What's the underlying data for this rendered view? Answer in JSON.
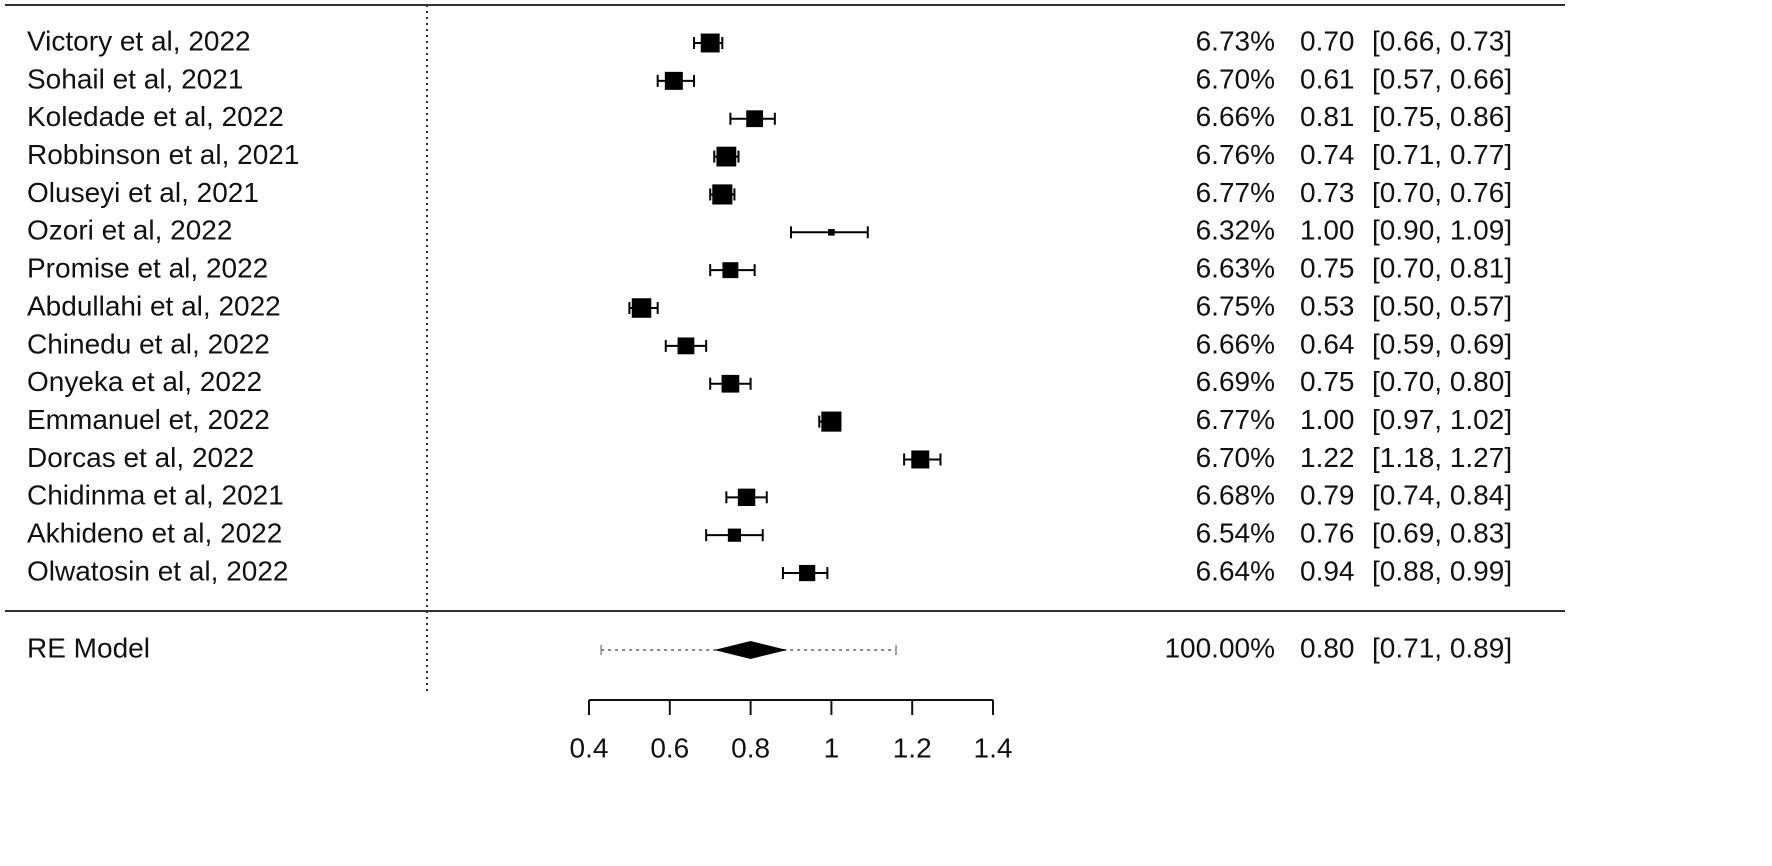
{
  "chart_data": {
    "type": "forest",
    "categories": [
      "Victory et al, 2022",
      "Sohail et al, 2021",
      "Koledade et al,  2022",
      "Robbinson et al,  2021",
      "Oluseyi et al,  2021",
      "Ozori et al, 2022",
      "Promise et al,  2022",
      "Abdullahi et al,  2022",
      "Chinedu et al, 2022",
      "Onyeka et al, 2022",
      "Emmanuel et, 2022",
      "Dorcas et al,  2022",
      "Chidinma et al,  2021",
      "Akhideno et al,  2022",
      "Olwatosin et al, 2022"
    ],
    "weights": [
      6.73,
      6.7,
      6.66,
      6.76,
      6.77,
      6.32,
      6.63,
      6.75,
      6.66,
      6.69,
      6.77,
      6.7,
      6.68,
      6.54,
      6.64
    ],
    "weight_labels": [
      "6.73%",
      "6.70%",
      "6.66%",
      "6.76%",
      "6.77%",
      "6.32%",
      "6.63%",
      "6.75%",
      "6.66%",
      "6.69%",
      "6.77%",
      "6.70%",
      "6.68%",
      "6.54%",
      "6.64%"
    ],
    "values": [
      0.7,
      0.61,
      0.81,
      0.74,
      0.73,
      1.0,
      0.75,
      0.53,
      0.64,
      0.75,
      1.0,
      1.22,
      0.79,
      0.76,
      0.94
    ],
    "value_labels": [
      "0.70",
      "0.61",
      "0.81",
      "0.74",
      "0.73",
      "1.00",
      "0.75",
      "0.53",
      "0.64",
      "0.75",
      "1.00",
      "1.22",
      "0.79",
      "0.76",
      "0.94"
    ],
    "lower": [
      0.66,
      0.57,
      0.75,
      0.71,
      0.7,
      0.9,
      0.7,
      0.5,
      0.59,
      0.7,
      0.97,
      1.18,
      0.74,
      0.69,
      0.88
    ],
    "upper": [
      0.73,
      0.66,
      0.86,
      0.77,
      0.76,
      1.09,
      0.81,
      0.57,
      0.69,
      0.8,
      1.02,
      1.27,
      0.84,
      0.83,
      0.99
    ],
    "ci_labels": [
      "[0.66, 0.73]",
      "[0.57, 0.66]",
      "[0.75, 0.86]",
      "[0.71, 0.77]",
      "[0.70, 0.76]",
      "[0.90, 1.09]",
      "[0.70, 0.81]",
      "[0.50, 0.57]",
      "[0.59, 0.69]",
      "[0.70, 0.80]",
      "[0.97, 1.02]",
      "[1.18, 1.27]",
      "[0.74, 0.84]",
      "[0.69, 0.83]",
      "[0.88, 0.99]"
    ],
    "summary": {
      "label": "RE Model",
      "weight": 100,
      "weight_label": "100.00%",
      "value": 0.8,
      "value_label": "0.80",
      "lower": 0.71,
      "upper": 0.89,
      "ci_label": "[0.71, 0.89]",
      "prediction_interval": [
        0.43,
        1.16
      ]
    },
    "xlim": [
      0.4,
      1.4
    ],
    "xticks": [
      0.4,
      0.6,
      0.8,
      1,
      1.2,
      1.4
    ],
    "reference_line": 0,
    "color": "#000000"
  }
}
